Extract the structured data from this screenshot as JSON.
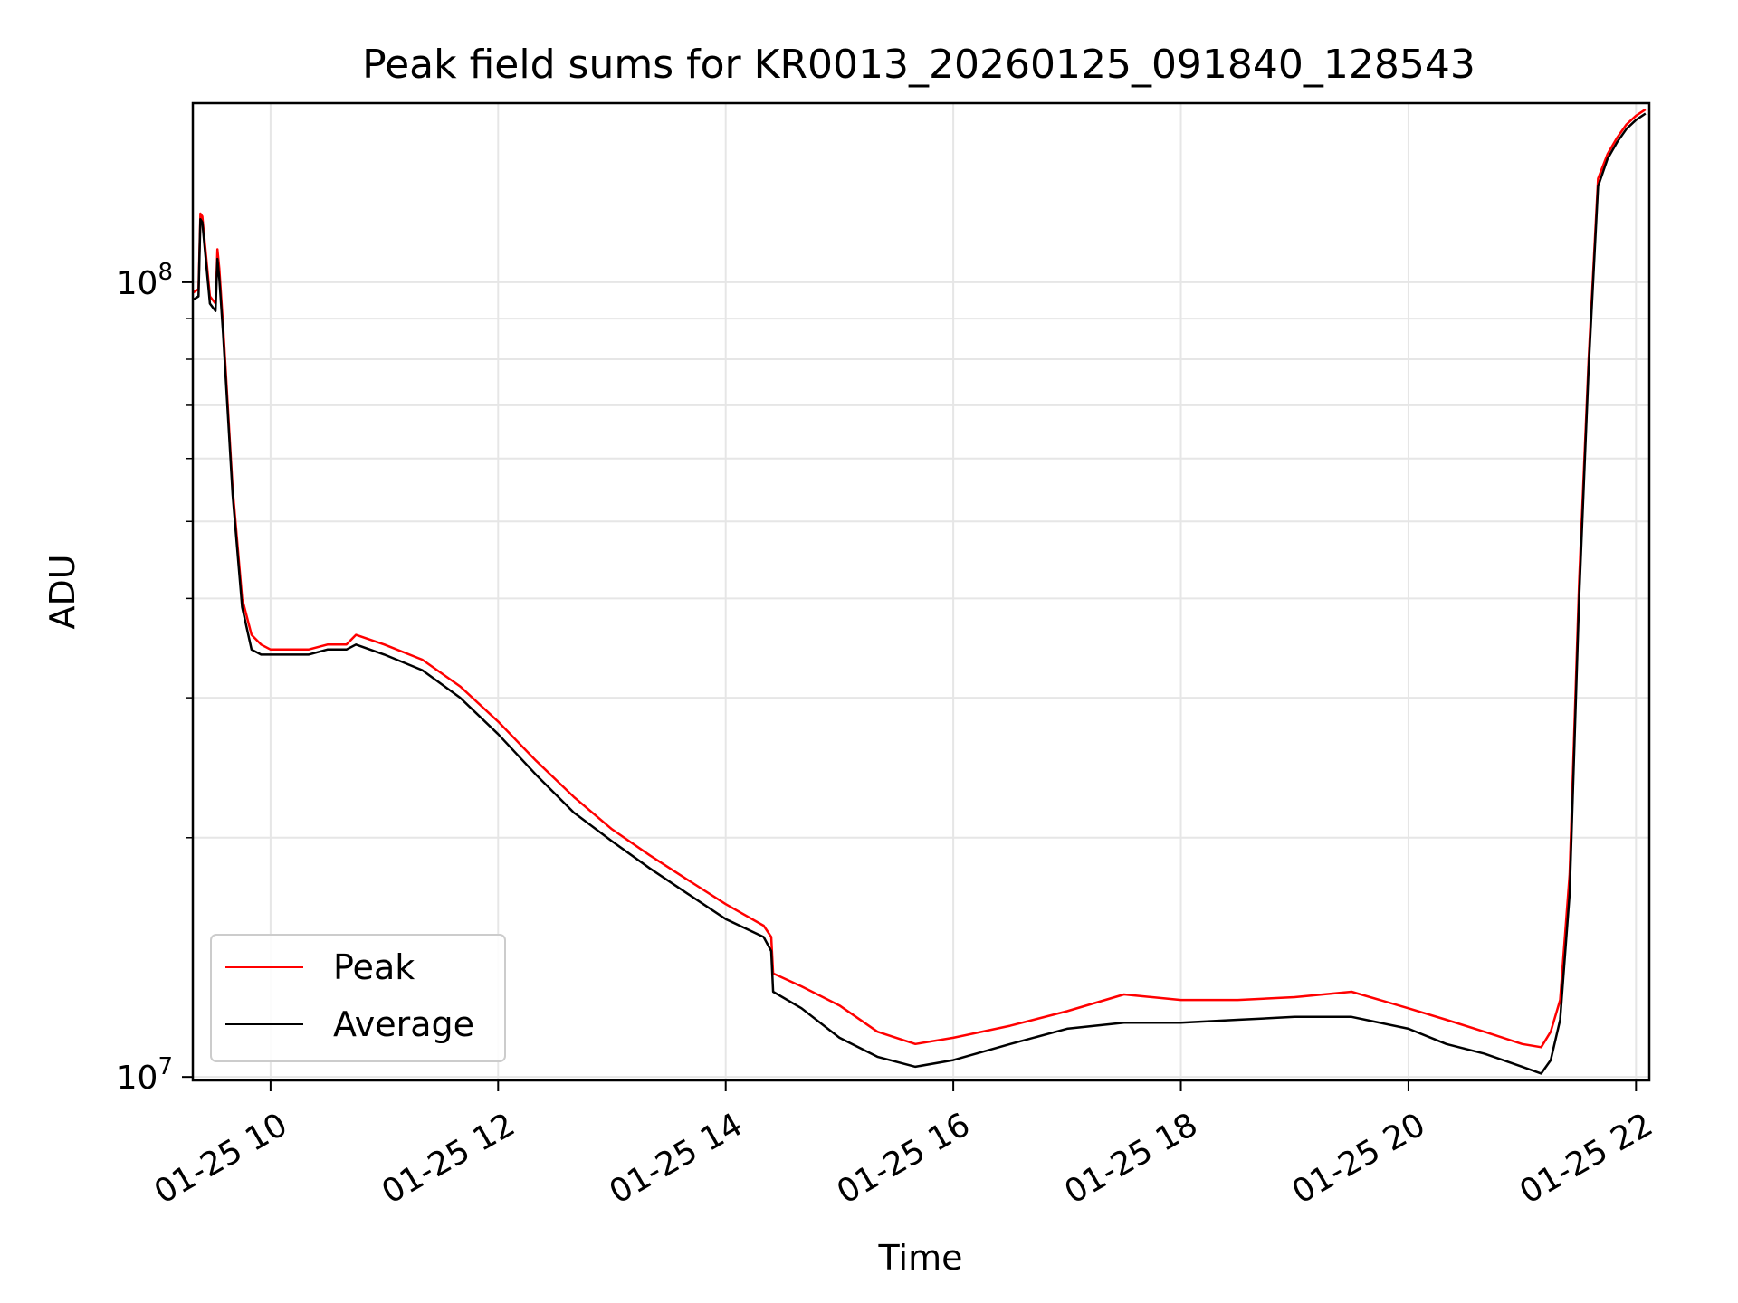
{
  "chart_data": {
    "type": "line",
    "title": "Peak field sums for KR0013_20260125_091840_128543",
    "xlabel": "Time",
    "ylabel": "ADU",
    "x_type": "time",
    "xlim": [
      "2026-01-25 09:19",
      "2026-01-25 22:07"
    ],
    "ylim": [
      9900000,
      168000000
    ],
    "y_scale": "log",
    "grid": true,
    "legend_position": "lower-left",
    "x_ticks": [
      {
        "label": "01-25 10",
        "value": "2026-01-25 10:00"
      },
      {
        "label": "01-25 12",
        "value": "2026-01-25 12:00"
      },
      {
        "label": "01-25 14",
        "value": "2026-01-25 14:00"
      },
      {
        "label": "01-25 16",
        "value": "2026-01-25 16:00"
      },
      {
        "label": "01-25 18",
        "value": "2026-01-25 18:00"
      },
      {
        "label": "01-25 20",
        "value": "2026-01-25 20:00"
      },
      {
        "label": "01-25 22",
        "value": "2026-01-25 22:00"
      }
    ],
    "y_ticks": [
      {
        "base": "10",
        "exp": "7",
        "value": 10000000
      },
      {
        "base": "10",
        "exp": "8",
        "value": 100000000
      }
    ],
    "series": [
      {
        "name": "Peak",
        "color": "#ff0000",
        "x": [
          "2026-01-25 09:19",
          "2026-01-25 09:22",
          "2026-01-25 09:23",
          "2026-01-25 09:24",
          "2026-01-25 09:28",
          "2026-01-25 09:31",
          "2026-01-25 09:32",
          "2026-01-25 09:33",
          "2026-01-25 09:35",
          "2026-01-25 09:40",
          "2026-01-25 09:45",
          "2026-01-25 09:50",
          "2026-01-25 09:55",
          "2026-01-25 10:00",
          "2026-01-25 10:10",
          "2026-01-25 10:20",
          "2026-01-25 10:30",
          "2026-01-25 10:40",
          "2026-01-25 10:45",
          "2026-01-25 11:00",
          "2026-01-25 11:20",
          "2026-01-25 11:40",
          "2026-01-25 12:00",
          "2026-01-25 12:20",
          "2026-01-25 12:40",
          "2026-01-25 13:00",
          "2026-01-25 13:20",
          "2026-01-25 13:40",
          "2026-01-25 14:00",
          "2026-01-25 14:20",
          "2026-01-25 14:24",
          "2026-01-25 14:25",
          "2026-01-25 14:40",
          "2026-01-25 15:00",
          "2026-01-25 15:20",
          "2026-01-25 15:40",
          "2026-01-25 16:00",
          "2026-01-25 16:30",
          "2026-01-25 17:00",
          "2026-01-25 17:30",
          "2026-01-25 18:00",
          "2026-01-25 18:30",
          "2026-01-25 19:00",
          "2026-01-25 19:30",
          "2026-01-25 20:00",
          "2026-01-25 20:20",
          "2026-01-25 20:40",
          "2026-01-25 21:00",
          "2026-01-25 21:10",
          "2026-01-25 21:15",
          "2026-01-25 21:20",
          "2026-01-25 21:25",
          "2026-01-25 21:30",
          "2026-01-25 21:35",
          "2026-01-25 21:40",
          "2026-01-25 21:45",
          "2026-01-25 21:50",
          "2026-01-25 21:55",
          "2026-01-25 22:00",
          "2026-01-25 22:05"
        ],
        "y": [
          97000000,
          98000000,
          122000000,
          121000000,
          96000000,
          94000000,
          110000000,
          104000000,
          88000000,
          55000000,
          40000000,
          36000000,
          35000000,
          34500000,
          34500000,
          34500000,
          35000000,
          35000000,
          36000000,
          35000000,
          33500000,
          31000000,
          28000000,
          25000000,
          22500000,
          20500000,
          19000000,
          17700000,
          16500000,
          15500000,
          15000000,
          13500000,
          13000000,
          12300000,
          11400000,
          11000000,
          11200000,
          11600000,
          12100000,
          12700000,
          12500000,
          12500000,
          12600000,
          12800000,
          12200000,
          11800000,
          11400000,
          11000000,
          10900000,
          11400000,
          12500000,
          18000000,
          42000000,
          80000000,
          135000000,
          145000000,
          152000000,
          158000000,
          162000000,
          165000000
        ]
      },
      {
        "name": "Average",
        "color": "#000000",
        "x": [
          "2026-01-25 09:19",
          "2026-01-25 09:22",
          "2026-01-25 09:23",
          "2026-01-25 09:24",
          "2026-01-25 09:28",
          "2026-01-25 09:31",
          "2026-01-25 09:32",
          "2026-01-25 09:33",
          "2026-01-25 09:35",
          "2026-01-25 09:40",
          "2026-01-25 09:45",
          "2026-01-25 09:50",
          "2026-01-25 09:55",
          "2026-01-25 10:00",
          "2026-01-25 10:10",
          "2026-01-25 10:20",
          "2026-01-25 10:30",
          "2026-01-25 10:40",
          "2026-01-25 10:45",
          "2026-01-25 11:00",
          "2026-01-25 11:20",
          "2026-01-25 11:40",
          "2026-01-25 12:00",
          "2026-01-25 12:20",
          "2026-01-25 12:40",
          "2026-01-25 13:00",
          "2026-01-25 13:20",
          "2026-01-25 13:40",
          "2026-01-25 14:00",
          "2026-01-25 14:20",
          "2026-01-25 14:24",
          "2026-01-25 14:25",
          "2026-01-25 14:40",
          "2026-01-25 15:00",
          "2026-01-25 15:20",
          "2026-01-25 15:40",
          "2026-01-25 16:00",
          "2026-01-25 16:30",
          "2026-01-25 17:00",
          "2026-01-25 17:30",
          "2026-01-25 18:00",
          "2026-01-25 18:30",
          "2026-01-25 19:00",
          "2026-01-25 19:30",
          "2026-01-25 20:00",
          "2026-01-25 20:20",
          "2026-01-25 20:40",
          "2026-01-25 21:00",
          "2026-01-25 21:10",
          "2026-01-25 21:15",
          "2026-01-25 21:20",
          "2026-01-25 21:25",
          "2026-01-25 21:30",
          "2026-01-25 21:35",
          "2026-01-25 21:40",
          "2026-01-25 21:45",
          "2026-01-25 21:50",
          "2026-01-25 21:55",
          "2026-01-25 22:00",
          "2026-01-25 22:05"
        ],
        "y": [
          95000000,
          96000000,
          120000000,
          119000000,
          94000000,
          92000000,
          107000000,
          101000000,
          86000000,
          54000000,
          39000000,
          34500000,
          34000000,
          34000000,
          34000000,
          34000000,
          34500000,
          34500000,
          35000000,
          34000000,
          32500000,
          30000000,
          27000000,
          24000000,
          21500000,
          19800000,
          18300000,
          17000000,
          15800000,
          15000000,
          14400000,
          12800000,
          12200000,
          11200000,
          10600000,
          10300000,
          10500000,
          11000000,
          11500000,
          11700000,
          11700000,
          11800000,
          11900000,
          11900000,
          11500000,
          11000000,
          10700000,
          10300000,
          10100000,
          10500000,
          11800000,
          17000000,
          40000000,
          78000000,
          132000000,
          143000000,
          150000000,
          156000000,
          160000000,
          163000000
        ]
      }
    ]
  }
}
